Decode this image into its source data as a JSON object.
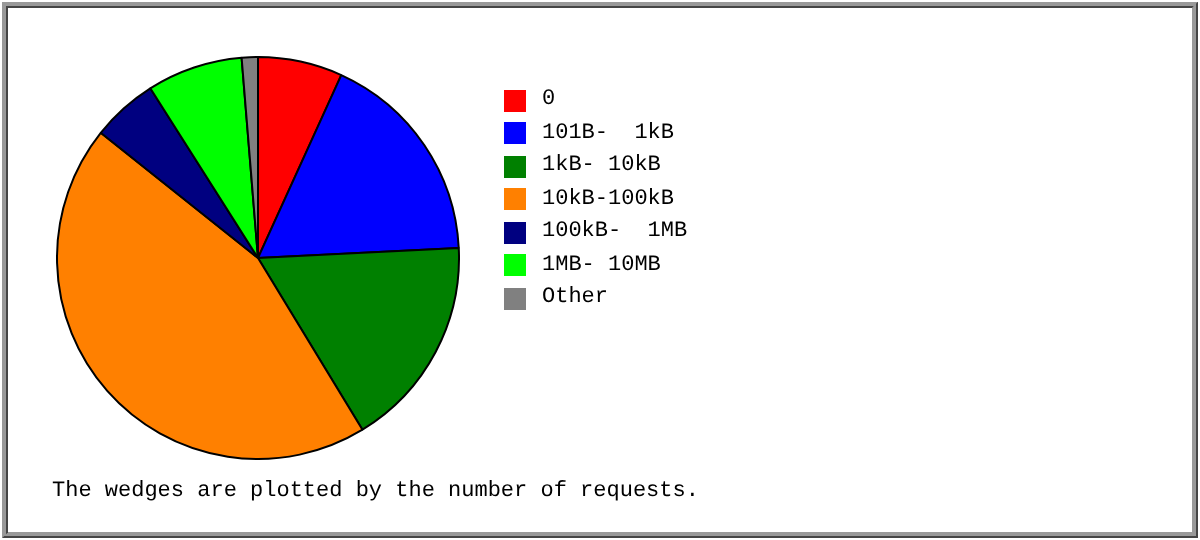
{
  "chart_data": {
    "type": "pie",
    "categories": [
      "0",
      "101B-  1kB",
      "1kB- 10kB",
      "10kB-100kB",
      "100kB-  1MB",
      "1MB- 10MB",
      "Other"
    ],
    "values": [
      6.8,
      17.4,
      17.1,
      44.4,
      5.3,
      7.7,
      1.3
    ],
    "colors": [
      "#ff0000",
      "#0000ff",
      "#008000",
      "#ff8000",
      "#000080",
      "#00ff00",
      "#808080"
    ],
    "legend": "right",
    "annotations": [
      "The wedges are plotted by the number of requests."
    ]
  }
}
